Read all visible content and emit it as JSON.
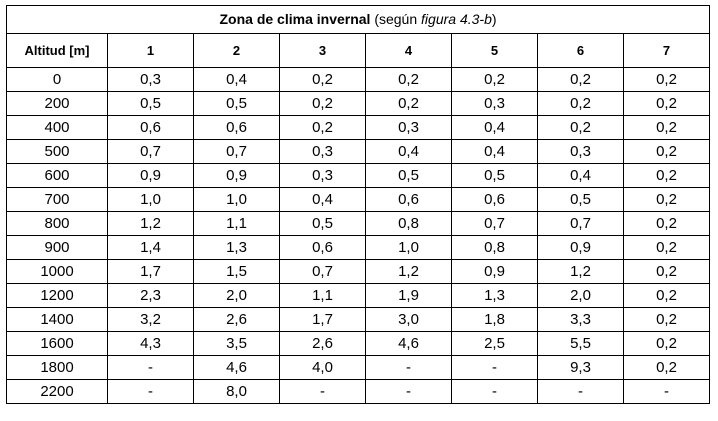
{
  "table": {
    "title_bold": "Zona de clima invernal",
    "title_paren_open": " (según ",
    "title_italic": "figura 4.3-b",
    "title_paren_close": ")",
    "header": [
      "Altitud [m]",
      "1",
      "2",
      "3",
      "4",
      "5",
      "6",
      "7"
    ],
    "rows": [
      [
        "0",
        "0,3",
        "0,4",
        "0,2",
        "0,2",
        "0,2",
        "0,2",
        "0,2"
      ],
      [
        "200",
        "0,5",
        "0,5",
        "0,2",
        "0,2",
        "0,3",
        "0,2",
        "0,2"
      ],
      [
        "400",
        "0,6",
        "0,6",
        "0,2",
        "0,3",
        "0,4",
        "0,2",
        "0,2"
      ],
      [
        "500",
        "0,7",
        "0,7",
        "0,3",
        "0,4",
        "0,4",
        "0,3",
        "0,2"
      ],
      [
        "600",
        "0,9",
        "0,9",
        "0,3",
        "0,5",
        "0,5",
        "0,4",
        "0,2"
      ],
      [
        "700",
        "1,0",
        "1,0",
        "0,4",
        "0,6",
        "0,6",
        "0,5",
        "0,2"
      ],
      [
        "800",
        "1,2",
        "1,1",
        "0,5",
        "0,8",
        "0,7",
        "0,7",
        "0,2"
      ],
      [
        "900",
        "1,4",
        "1,3",
        "0,6",
        "1,0",
        "0,8",
        "0,9",
        "0,2"
      ],
      [
        "1000",
        "1,7",
        "1,5",
        "0,7",
        "1,2",
        "0,9",
        "1,2",
        "0,2"
      ],
      [
        "1200",
        "2,3",
        "2,0",
        "1,1",
        "1,9",
        "1,3",
        "2,0",
        "0,2"
      ],
      [
        "1400",
        "3,2",
        "2,6",
        "1,7",
        "3,0",
        "1,8",
        "3,3",
        "0,2"
      ],
      [
        "1600",
        "4,3",
        "3,5",
        "2,6",
        "4,6",
        "2,5",
        "5,5",
        "0,2"
      ],
      [
        "1800",
        "-",
        "4,6",
        "4,0",
        "-",
        "-",
        "9,3",
        "0,2"
      ],
      [
        "2200",
        "-",
        "8,0",
        "-",
        "-",
        "-",
        "-",
        "-"
      ]
    ]
  }
}
